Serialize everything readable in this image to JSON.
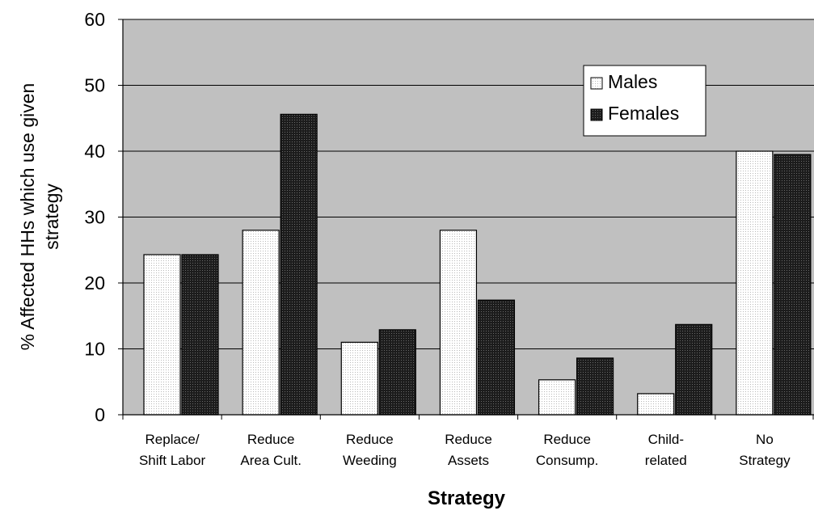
{
  "chart_data": {
    "type": "bar",
    "title": "",
    "xlabel": "Strategy",
    "ylabel": [
      "% Affected HHs which use given",
      "strategy"
    ],
    "ylim": [
      0,
      60
    ],
    "yticks": [
      0,
      10,
      20,
      30,
      40,
      50,
      60
    ],
    "categories": [
      [
        "Replace/",
        "Shift Labor"
      ],
      [
        "Reduce",
        "Area Cult."
      ],
      [
        "Reduce",
        "Weeding"
      ],
      [
        "Reduce",
        "Assets"
      ],
      [
        "Reduce",
        "Consump."
      ],
      [
        "Child-",
        "related"
      ],
      [
        "No",
        "Strategy"
      ]
    ],
    "series": [
      {
        "name": "Males",
        "color": "#ffffff",
        "values": [
          24.3,
          28.0,
          11.0,
          28.0,
          5.3,
          3.2,
          40.0
        ]
      },
      {
        "name": "Females",
        "color": "#262626",
        "values": [
          24.3,
          45.6,
          12.9,
          17.4,
          8.6,
          13.7,
          39.5
        ]
      }
    ],
    "plot_background": "#c0c0c0",
    "grid": true,
    "legend": {
      "position": "top-right"
    }
  }
}
